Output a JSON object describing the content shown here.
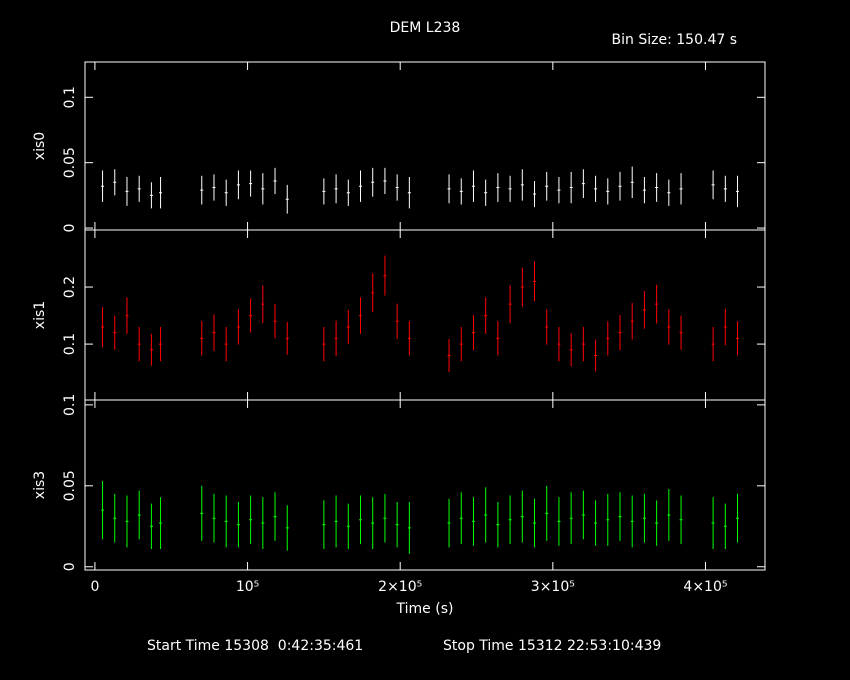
{
  "title": "DEM L238",
  "bin_size": "Bin Size: 150.47 s",
  "start_time": "Start Time 15308  0:42:35:461",
  "stop_time": "Stop Time 15312 22:53:10:439",
  "xlabel": "Time (s)",
  "chart_data": [
    {
      "type": "errorbar",
      "ylabel": "xis0",
      "color": "#ffffff",
      "xlim": [
        -6500,
        439000
      ],
      "xticks": [
        0,
        {
          "value": 100000,
          "label": "10⁵"
        },
        {
          "value": 200000,
          "label": "2×10⁵"
        },
        {
          "value": 300000,
          "label": "3×10⁵"
        },
        {
          "value": 400000,
          "label": "4×10⁵"
        }
      ],
      "ylim": [
        -0.0015,
        0.127
      ],
      "yticks": [
        0,
        0.05,
        0.1
      ],
      "x": [
        5000,
        13000,
        21000,
        29000,
        37000,
        43000,
        70000,
        78000,
        86000,
        94000,
        102000,
        110000,
        118000,
        126000,
        150000,
        158000,
        166000,
        174000,
        182000,
        190000,
        198000,
        206000,
        232000,
        240000,
        248000,
        256000,
        264000,
        272000,
        280000,
        288000,
        296000,
        304000,
        312000,
        320000,
        328000,
        336000,
        344000,
        352000,
        360000,
        368000,
        376000,
        384000,
        405000,
        413000,
        421000
      ],
      "values": [
        0.032,
        0.035,
        0.028,
        0.03,
        0.025,
        0.027,
        0.029,
        0.031,
        0.027,
        0.033,
        0.034,
        0.03,
        0.036,
        0.022,
        0.028,
        0.03,
        0.027,
        0.032,
        0.035,
        0.036,
        0.031,
        0.027,
        0.03,
        0.028,
        0.032,
        0.027,
        0.031,
        0.03,
        0.033,
        0.026,
        0.032,
        0.029,
        0.031,
        0.034,
        0.03,
        0.028,
        0.032,
        0.035,
        0.029,
        0.031,
        0.027,
        0.03,
        0.033,
        0.03,
        0.028
      ],
      "errors": [
        0.012,
        0.01,
        0.011,
        0.01,
        0.01,
        0.012,
        0.011,
        0.01,
        0.01,
        0.011,
        0.01,
        0.012,
        0.01,
        0.011,
        0.01,
        0.011,
        0.01,
        0.012,
        0.011,
        0.01,
        0.01,
        0.012,
        0.011,
        0.01,
        0.012,
        0.01,
        0.011,
        0.01,
        0.012,
        0.01,
        0.011,
        0.01,
        0.012,
        0.011,
        0.01,
        0.01,
        0.011,
        0.012,
        0.01,
        0.011,
        0.01,
        0.012,
        0.011,
        0.01,
        0.012
      ]
    },
    {
      "type": "errorbar",
      "ylabel": "xis1",
      "color": "#ff0000",
      "xlim": [
        -6500,
        439000
      ],
      "xticks": [
        0,
        {
          "value": 100000,
          "label": "10⁵"
        },
        {
          "value": 200000,
          "label": "2×10⁵"
        },
        {
          "value": 300000,
          "label": "3×10⁵"
        },
        {
          "value": 400000,
          "label": "4×10⁵"
        }
      ],
      "ylim": [
        0.002,
        0.3
      ],
      "yticks": [
        0.1,
        0.2
      ],
      "x": [
        5000,
        13000,
        21000,
        29000,
        37000,
        43000,
        70000,
        78000,
        86000,
        94000,
        102000,
        110000,
        118000,
        126000,
        150000,
        158000,
        166000,
        174000,
        182000,
        190000,
        198000,
        206000,
        232000,
        240000,
        248000,
        256000,
        264000,
        272000,
        280000,
        288000,
        296000,
        304000,
        312000,
        320000,
        328000,
        336000,
        344000,
        352000,
        360000,
        368000,
        376000,
        384000,
        405000,
        413000,
        421000
      ],
      "values": [
        0.13,
        0.12,
        0.15,
        0.1,
        0.09,
        0.1,
        0.11,
        0.12,
        0.1,
        0.13,
        0.15,
        0.17,
        0.14,
        0.11,
        0.1,
        0.11,
        0.13,
        0.15,
        0.19,
        0.22,
        0.14,
        0.11,
        0.08,
        0.1,
        0.12,
        0.15,
        0.11,
        0.17,
        0.2,
        0.21,
        0.13,
        0.1,
        0.09,
        0.1,
        0.08,
        0.11,
        0.12,
        0.14,
        0.16,
        0.17,
        0.13,
        0.12,
        0.1,
        0.13,
        0.11
      ],
      "errors": [
        0.035,
        0.03,
        0.032,
        0.03,
        0.028,
        0.03,
        0.03,
        0.032,
        0.03,
        0.031,
        0.03,
        0.033,
        0.03,
        0.029,
        0.03,
        0.031,
        0.03,
        0.032,
        0.034,
        0.035,
        0.031,
        0.03,
        0.029,
        0.03,
        0.031,
        0.032,
        0.03,
        0.033,
        0.034,
        0.035,
        0.031,
        0.03,
        0.029,
        0.03,
        0.028,
        0.03,
        0.031,
        0.032,
        0.033,
        0.034,
        0.031,
        0.03,
        0.03,
        0.032,
        0.03
      ]
    },
    {
      "type": "errorbar",
      "ylabel": "xis3",
      "color": "#00ff00",
      "xlim": [
        -6500,
        439000
      ],
      "xticks": [
        0,
        {
          "value": 100000,
          "label": "10⁵"
        },
        {
          "value": 200000,
          "label": "2×10⁵"
        },
        {
          "value": 300000,
          "label": "3×10⁵"
        },
        {
          "value": 400000,
          "label": "4×10⁵"
        }
      ],
      "ylim": [
        -0.002,
        0.103
      ],
      "yticks": [
        0,
        0.05,
        0.1
      ],
      "x": [
        5000,
        13000,
        21000,
        29000,
        37000,
        43000,
        70000,
        78000,
        86000,
        94000,
        102000,
        110000,
        118000,
        126000,
        150000,
        158000,
        166000,
        174000,
        182000,
        190000,
        198000,
        206000,
        232000,
        240000,
        248000,
        256000,
        264000,
        272000,
        280000,
        288000,
        296000,
        304000,
        312000,
        320000,
        328000,
        336000,
        344000,
        352000,
        360000,
        368000,
        376000,
        384000,
        405000,
        413000,
        421000
      ],
      "values": [
        0.035,
        0.03,
        0.028,
        0.032,
        0.025,
        0.027,
        0.033,
        0.03,
        0.028,
        0.026,
        0.029,
        0.027,
        0.031,
        0.024,
        0.026,
        0.028,
        0.025,
        0.029,
        0.027,
        0.03,
        0.026,
        0.024,
        0.027,
        0.03,
        0.028,
        0.032,
        0.026,
        0.029,
        0.031,
        0.027,
        0.033,
        0.028,
        0.03,
        0.032,
        0.027,
        0.029,
        0.031,
        0.028,
        0.03,
        0.027,
        0.032,
        0.029,
        0.027,
        0.025,
        0.03
      ],
      "errors": [
        0.018,
        0.015,
        0.016,
        0.015,
        0.014,
        0.016,
        0.017,
        0.015,
        0.016,
        0.014,
        0.015,
        0.016,
        0.015,
        0.014,
        0.015,
        0.016,
        0.014,
        0.015,
        0.016,
        0.015,
        0.014,
        0.016,
        0.015,
        0.016,
        0.015,
        0.017,
        0.014,
        0.015,
        0.016,
        0.015,
        0.017,
        0.015,
        0.016,
        0.015,
        0.014,
        0.016,
        0.015,
        0.016,
        0.015,
        0.014,
        0.016,
        0.015,
        0.016,
        0.014,
        0.015
      ]
    }
  ]
}
